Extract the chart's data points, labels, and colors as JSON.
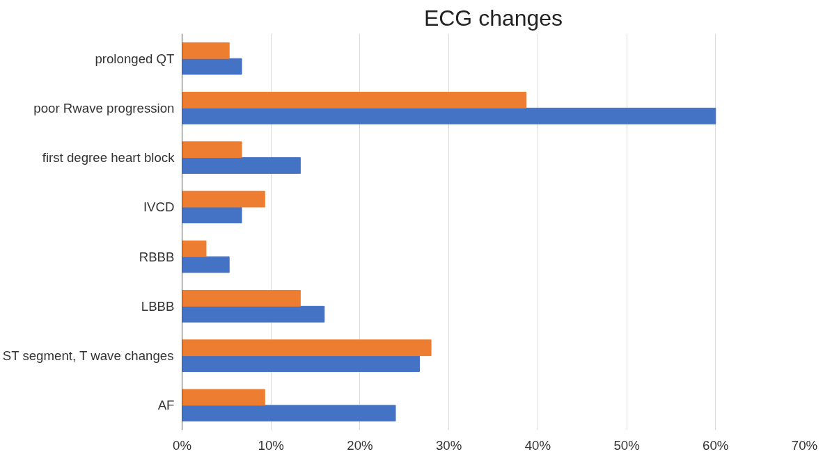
{
  "chart_data": {
    "type": "bar",
    "orientation": "horizontal",
    "title": "ECG changes",
    "categories": [
      "prolonged QT",
      "poor Rwave progression",
      "first degree heart block",
      "IVCD",
      "RBBB",
      "LBBB",
      "ST segment, T wave changes",
      "AF"
    ],
    "series": [
      {
        "color": "#4472c4",
        "values": [
          6.7,
          60.0,
          13.3,
          6.7,
          5.3,
          16.0,
          26.7,
          24.0
        ]
      },
      {
        "color": "#ed7d31",
        "values": [
          5.3,
          38.7,
          6.7,
          9.3,
          2.7,
          13.3,
          28.0,
          9.3
        ]
      }
    ],
    "xlim": [
      0,
      70
    ],
    "xticks": [
      {
        "value": 0,
        "label": "0%"
      },
      {
        "value": 10,
        "label": "10%"
      },
      {
        "value": 20,
        "label": "20%"
      },
      {
        "value": 30,
        "label": "30%"
      },
      {
        "value": 40,
        "label": "40%"
      },
      {
        "value": 50,
        "label": "50%"
      },
      {
        "value": 60,
        "label": "60%"
      },
      {
        "value": 70,
        "label": "70%"
      }
    ],
    "grid": "x"
  }
}
